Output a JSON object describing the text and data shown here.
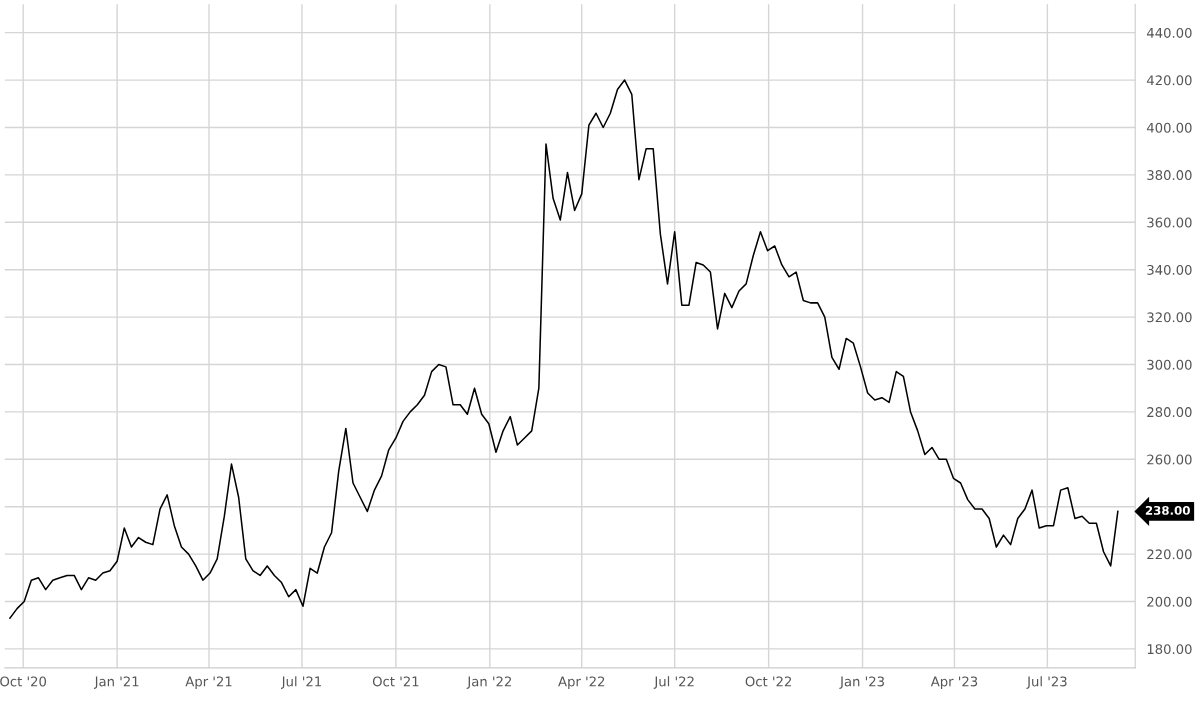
{
  "chart_data": {
    "type": "line",
    "x": [
      "2020-09-18",
      "2020-09-25",
      "2020-10-02",
      "2020-10-09",
      "2020-10-16",
      "2020-10-23",
      "2020-10-30",
      "2020-11-06",
      "2020-11-13",
      "2020-11-20",
      "2020-11-27",
      "2020-12-04",
      "2020-12-11",
      "2020-12-18",
      "2020-12-25",
      "2021-01-01",
      "2021-01-08",
      "2021-01-15",
      "2021-01-22",
      "2021-01-29",
      "2021-02-05",
      "2021-02-12",
      "2021-02-19",
      "2021-02-26",
      "2021-03-05",
      "2021-03-12",
      "2021-03-19",
      "2021-03-26",
      "2021-04-02",
      "2021-04-09",
      "2021-04-16",
      "2021-04-23",
      "2021-04-30",
      "2021-05-07",
      "2021-05-14",
      "2021-05-21",
      "2021-05-28",
      "2021-06-04",
      "2021-06-11",
      "2021-06-18",
      "2021-06-25",
      "2021-07-02",
      "2021-07-09",
      "2021-07-16",
      "2021-07-23",
      "2021-07-30",
      "2021-08-06",
      "2021-08-13",
      "2021-08-20",
      "2021-08-27",
      "2021-09-03",
      "2021-09-10",
      "2021-09-17",
      "2021-09-24",
      "2021-10-01",
      "2021-10-08",
      "2021-10-15",
      "2021-10-22",
      "2021-10-29",
      "2021-11-05",
      "2021-11-12",
      "2021-11-19",
      "2021-11-26",
      "2021-12-03",
      "2021-12-10",
      "2021-12-17",
      "2021-12-24",
      "2021-12-31",
      "2022-01-07",
      "2022-01-14",
      "2022-01-21",
      "2022-01-28",
      "2022-02-04",
      "2022-02-11",
      "2022-02-18",
      "2022-02-25",
      "2022-03-04",
      "2022-03-11",
      "2022-03-18",
      "2022-03-25",
      "2022-04-01",
      "2022-04-08",
      "2022-04-15",
      "2022-04-22",
      "2022-04-29",
      "2022-05-06",
      "2022-05-13",
      "2022-05-20",
      "2022-05-27",
      "2022-06-03",
      "2022-06-10",
      "2022-06-17",
      "2022-06-24",
      "2022-07-01",
      "2022-07-08",
      "2022-07-15",
      "2022-07-22",
      "2022-07-29",
      "2022-08-05",
      "2022-08-12",
      "2022-08-19",
      "2022-08-26",
      "2022-09-02",
      "2022-09-09",
      "2022-09-16",
      "2022-09-23",
      "2022-09-30",
      "2022-10-07",
      "2022-10-14",
      "2022-10-21",
      "2022-10-28",
      "2022-11-04",
      "2022-11-11",
      "2022-11-18",
      "2022-11-25",
      "2022-12-02",
      "2022-12-09",
      "2022-12-16",
      "2022-12-23",
      "2022-12-30",
      "2023-01-06",
      "2023-01-13",
      "2023-01-20",
      "2023-01-27",
      "2023-02-03",
      "2023-02-10",
      "2023-02-17",
      "2023-02-24",
      "2023-03-03",
      "2023-03-10",
      "2023-03-17",
      "2023-03-24",
      "2023-03-31",
      "2023-04-07",
      "2023-04-14",
      "2023-04-21",
      "2023-04-28",
      "2023-05-05",
      "2023-05-12",
      "2023-05-19",
      "2023-05-26",
      "2023-06-02",
      "2023-06-09",
      "2023-06-16",
      "2023-06-23",
      "2023-06-30",
      "2023-07-07",
      "2023-07-14",
      "2023-07-21",
      "2023-07-28",
      "2023-08-04",
      "2023-08-11",
      "2023-08-18",
      "2023-08-25",
      "2023-09-01",
      "2023-09-08"
    ],
    "series": [
      {
        "color": "#000000",
        "values": [
          193,
          197,
          200,
          209,
          210,
          205,
          209,
          210,
          211,
          211,
          205,
          210,
          209,
          212,
          213,
          217,
          231,
          223,
          227,
          225,
          224,
          239,
          245,
          232,
          223,
          220,
          215,
          209,
          212,
          218,
          236,
          258,
          244,
          218,
          213,
          211,
          215,
          211,
          208,
          202,
          205,
          198,
          214,
          212,
          223,
          229,
          255,
          273,
          250,
          244,
          238,
          247,
          253,
          264,
          269,
          276,
          280,
          283,
          287,
          297,
          300,
          299,
          283,
          283,
          279,
          290,
          279,
          275,
          263,
          272,
          278,
          266,
          269,
          272,
          290,
          393,
          370,
          361,
          381,
          365,
          372,
          401,
          406,
          400,
          406,
          416,
          420,
          414,
          378,
          391,
          391,
          355,
          334,
          356,
          325,
          325,
          343,
          342,
          339,
          315,
          330,
          324,
          331,
          334,
          346,
          356,
          348,
          350,
          342,
          337,
          339,
          327,
          326,
          326,
          320,
          303,
          298,
          311,
          309,
          299,
          288,
          285,
          286,
          284,
          297,
          295,
          280,
          272,
          262,
          265,
          260,
          260,
          252,
          250,
          243,
          239,
          239,
          235,
          223,
          228,
          224,
          235,
          239,
          247,
          231,
          232,
          232,
          247,
          248,
          235,
          236,
          233,
          233,
          221,
          215,
          238
        ]
      }
    ],
    "xlim": [
      "2020-09-13",
      "2023-09-25"
    ],
    "xticks": [
      {
        "value": "2020-10-01",
        "label": "Oct '20"
      },
      {
        "value": "2021-01-01",
        "label": "Jan '21"
      },
      {
        "value": "2021-04-01",
        "label": "Apr '21"
      },
      {
        "value": "2021-07-01",
        "label": "Jul '21"
      },
      {
        "value": "2021-10-01",
        "label": "Oct '21"
      },
      {
        "value": "2022-01-01",
        "label": "Jan '22"
      },
      {
        "value": "2022-04-01",
        "label": "Apr '22"
      },
      {
        "value": "2022-07-01",
        "label": "Jul '22"
      },
      {
        "value": "2022-10-01",
        "label": "Oct '22"
      },
      {
        "value": "2023-01-01",
        "label": "Jan '23"
      },
      {
        "value": "2023-04-01",
        "label": "Apr '23"
      },
      {
        "value": "2023-07-01",
        "label": "Jul '23"
      }
    ],
    "ylim": [
      172,
      452
    ],
    "yticks": [
      {
        "value": 180,
        "label": "180.00"
      },
      {
        "value": 200,
        "label": "200.00"
      },
      {
        "value": 220,
        "label": "220.00"
      },
      {
        "value": 240,
        "label": null
      },
      {
        "value": 260,
        "label": "260.00"
      },
      {
        "value": 280,
        "label": "280.00"
      },
      {
        "value": 300,
        "label": "300.00"
      },
      {
        "value": 320,
        "label": "320.00"
      },
      {
        "value": 340,
        "label": "340.00"
      },
      {
        "value": 360,
        "label": "360.00"
      },
      {
        "value": 380,
        "label": "380.00"
      },
      {
        "value": 400,
        "label": "400.00"
      },
      {
        "value": 420,
        "label": "420.00"
      },
      {
        "value": 440,
        "label": "440.00"
      }
    ],
    "grid": true,
    "annotations": [
      "238.00"
    ]
  }
}
